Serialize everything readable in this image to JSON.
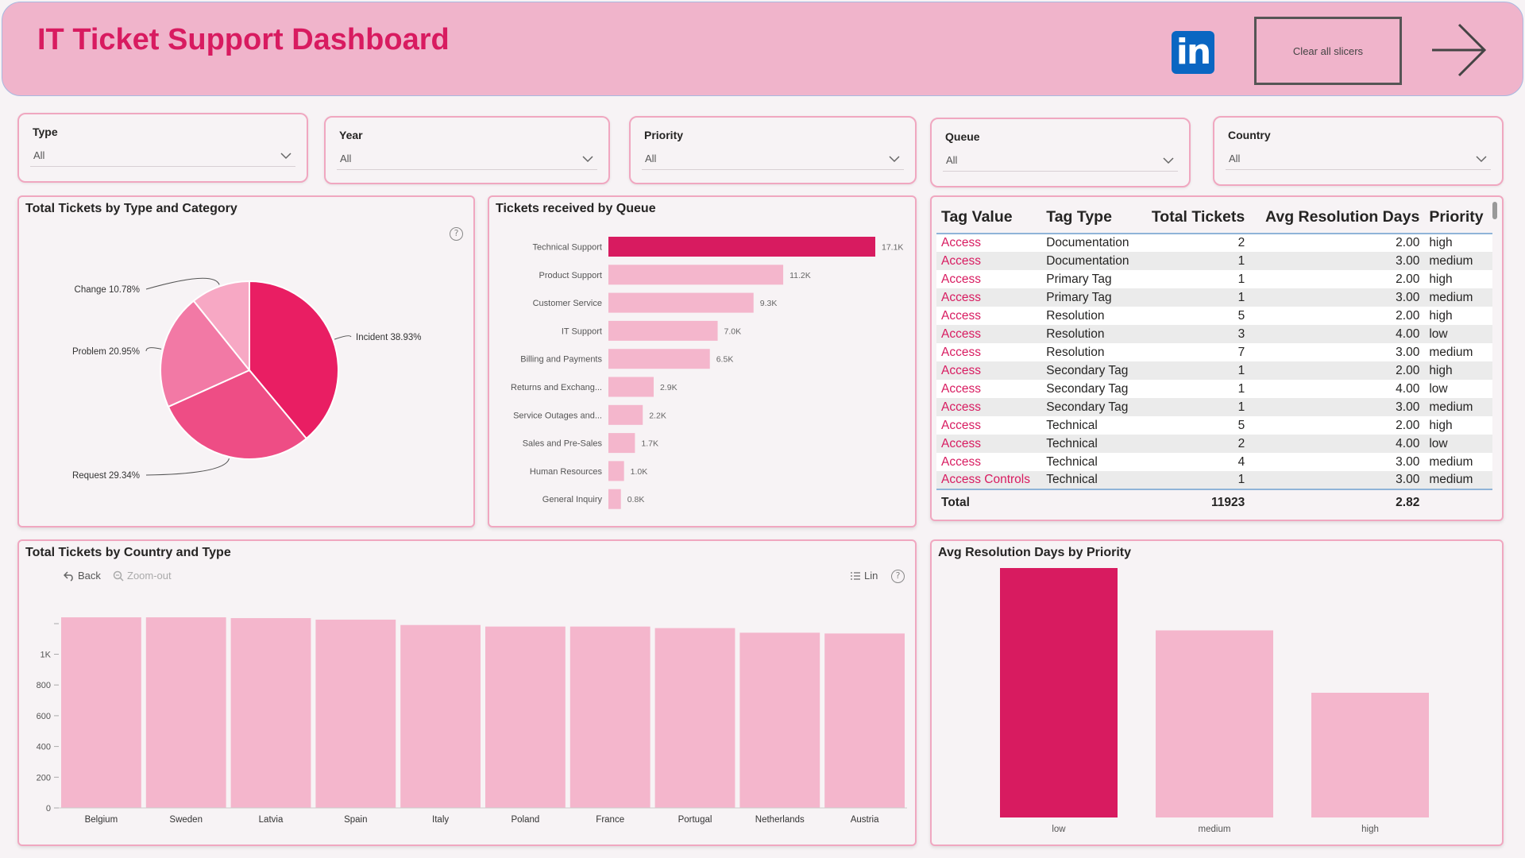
{
  "header": {
    "title": "IT Ticket Support Dashboard",
    "linkedin_icon": "linkedin-icon",
    "clear_label": "Clear all slicers",
    "arrow_icon": "arrow-right-icon"
  },
  "slicers": [
    {
      "label": "Type",
      "value": "All"
    },
    {
      "label": "Year",
      "value": "All"
    },
    {
      "label": "Priority",
      "value": "All"
    },
    {
      "label": "Queue",
      "value": "All"
    },
    {
      "label": "Country",
      "value": "All"
    }
  ],
  "colors": {
    "accent": "#d81b60",
    "light": "#f4b6cc",
    "panel_border": "#f0a7c0"
  },
  "pie": {
    "title": "Total Tickets by Type and Category",
    "chart_data": {
      "type": "pie",
      "labels": [
        "Incident 38.93%",
        "Request 29.34%",
        "Problem 20.95%",
        "Change 10.78%"
      ],
      "categories": [
        "Incident",
        "Request",
        "Problem",
        "Change"
      ],
      "values": [
        38.93,
        29.34,
        20.95,
        10.78
      ],
      "colors": [
        "#e91e63",
        "#ee4d85",
        "#f279a5",
        "#f7a8c4"
      ]
    }
  },
  "queue": {
    "title": "Tickets received by Queue",
    "chart_data": {
      "type": "bar",
      "orientation": "horizontal",
      "categories": [
        "Technical Support",
        "Product Support",
        "Customer Service",
        "IT Support",
        "Billing and Payments",
        "Returns and Exchang...",
        "Service Outages and...",
        "Sales and Pre-Sales",
        "Human Resources",
        "General Inquiry"
      ],
      "values": [
        17100,
        11200,
        9300,
        7000,
        6500,
        2900,
        2200,
        1700,
        1000,
        800
      ],
      "labels": [
        "17.1K",
        "11.2K",
        "9.3K",
        "7.0K",
        "6.5K",
        "2.9K",
        "2.2K",
        "1.7K",
        "1.0K",
        "0.8K"
      ],
      "highlight_index": 0
    }
  },
  "table": {
    "headers": [
      "Tag Value",
      "Tag Type",
      "Total Tickets",
      "Avg Resolution Days",
      "Priority"
    ],
    "rows": [
      [
        "Access",
        "Documentation",
        "2",
        "2.00",
        "high"
      ],
      [
        "Access",
        "Documentation",
        "1",
        "3.00",
        "medium"
      ],
      [
        "Access",
        "Primary Tag",
        "1",
        "2.00",
        "high"
      ],
      [
        "Access",
        "Primary Tag",
        "1",
        "3.00",
        "medium"
      ],
      [
        "Access",
        "Resolution",
        "5",
        "2.00",
        "high"
      ],
      [
        "Access",
        "Resolution",
        "3",
        "4.00",
        "low"
      ],
      [
        "Access",
        "Resolution",
        "7",
        "3.00",
        "medium"
      ],
      [
        "Access",
        "Secondary Tag",
        "1",
        "2.00",
        "high"
      ],
      [
        "Access",
        "Secondary Tag",
        "1",
        "4.00",
        "low"
      ],
      [
        "Access",
        "Secondary Tag",
        "1",
        "3.00",
        "medium"
      ],
      [
        "Access",
        "Technical",
        "5",
        "2.00",
        "high"
      ],
      [
        "Access",
        "Technical",
        "2",
        "4.00",
        "low"
      ],
      [
        "Access",
        "Technical",
        "4",
        "3.00",
        "medium"
      ],
      [
        "Access Controls",
        "Technical",
        "1",
        "3.00",
        "medium"
      ]
    ],
    "total": [
      "Total",
      "",
      "11923",
      "2.82",
      ""
    ]
  },
  "country": {
    "title": "Total Tickets by Country and Type",
    "back_label": "Back",
    "zoom_label": "Zoom-out",
    "lin_label": "Lin",
    "chart_data": {
      "type": "bar",
      "categories": [
        "Belgium",
        "Sweden",
        "Latvia",
        "Spain",
        "Italy",
        "Poland",
        "France",
        "Portugal",
        "Netherlands",
        "Austria"
      ],
      "values": [
        1240,
        1240,
        1235,
        1225,
        1190,
        1180,
        1180,
        1170,
        1140,
        1135
      ],
      "yticks": [
        0,
        200,
        400,
        600,
        800,
        "1K"
      ],
      "ylim": [
        0,
        1300
      ]
    }
  },
  "priority": {
    "title": "Avg Resolution Days by Priority",
    "chart_data": {
      "type": "bar",
      "categories": [
        "low",
        "medium",
        "high"
      ],
      "values": [
        4.0,
        3.0,
        2.0
      ],
      "ylim": [
        0,
        4.0
      ],
      "highlight_index": 0
    }
  }
}
